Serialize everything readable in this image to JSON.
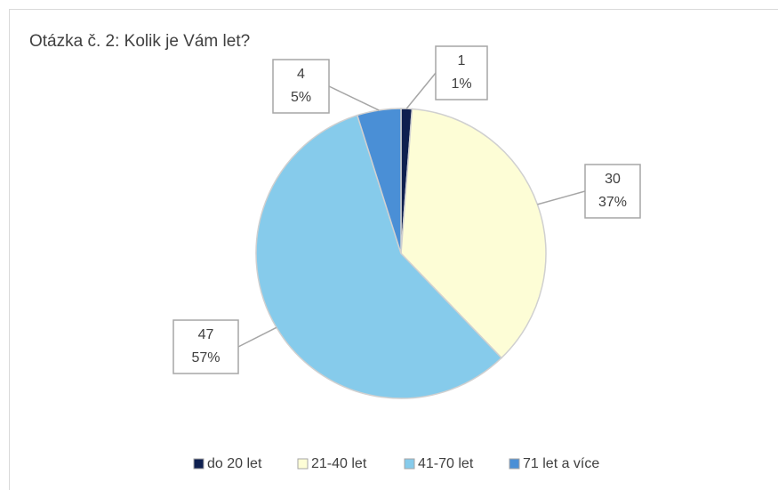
{
  "chart_data": {
    "type": "pie",
    "title": "Otázka č. 2: Kolik je Vám let?",
    "categories": [
      "do 20 let",
      "21-40 let",
      "41-70 let",
      "71 let a více"
    ],
    "values": [
      1,
      30,
      47,
      4
    ],
    "percent_labels": [
      "1%",
      "37%",
      "57%",
      "5%"
    ],
    "colors": [
      "#0e1f4f",
      "#fdfdd6",
      "#86cbeb",
      "#4a8fd6"
    ],
    "legend": "bottom"
  }
}
